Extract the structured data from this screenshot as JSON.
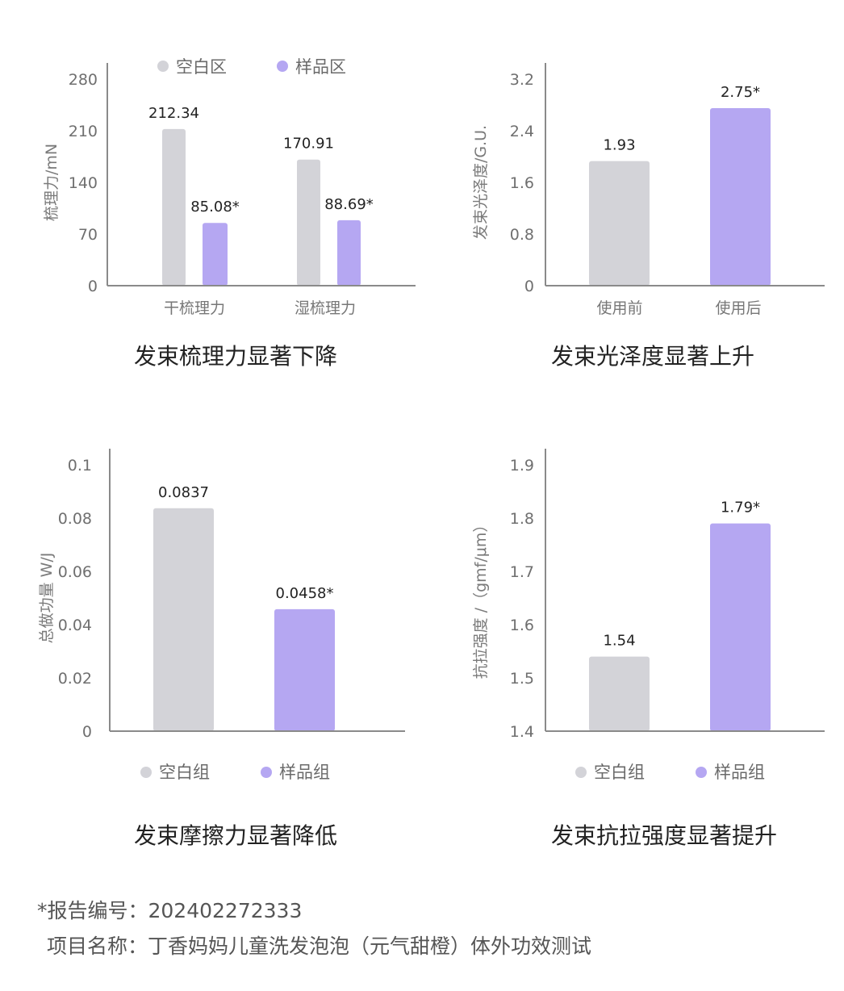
{
  "colors": {
    "blank": "#d3d3d8",
    "sample": "#b5a7f2",
    "axis": "#8a8a8a"
  },
  "chart_data": [
    {
      "type": "bar",
      "title": "发束梳理力显著下降",
      "ylabel": "梳理力/mN",
      "ylim": [
        0,
        280
      ],
      "yticks": [
        "0",
        "70",
        "140",
        "210",
        "280"
      ],
      "categories": [
        "干梳理力",
        "湿梳理力"
      ],
      "legend_position": "top",
      "series": [
        {
          "name": "空白区",
          "values": [
            212.34,
            170.91
          ],
          "labels": [
            "212.34",
            "170.91"
          ]
        },
        {
          "name": "样品区",
          "values": [
            85.08,
            88.69
          ],
          "labels": [
            "85.08*",
            "88.69*"
          ]
        }
      ]
    },
    {
      "type": "bar",
      "title": "发束光泽度显著上升",
      "ylabel": "发束光泽度/G.U.",
      "ylim": [
        0,
        3.2
      ],
      "yticks": [
        "0",
        "0.8",
        "1.6",
        "2.4",
        "3.2"
      ],
      "categories": [
        "使用前",
        "使用后"
      ],
      "values": [
        1.93,
        2.75
      ],
      "labels": [
        "1.93",
        "2.75*"
      ]
    },
    {
      "type": "bar",
      "title": "发束摩擦力显著降低",
      "ylabel": "总做功量 W/J",
      "ylim": [
        0,
        0.1
      ],
      "yticks": [
        "0",
        "0.02",
        "0.04",
        "0.06",
        "0.08",
        "0.1"
      ],
      "categories": [
        "空白组",
        "样品组"
      ],
      "values": [
        0.0837,
        0.0458
      ],
      "labels": [
        "0.0837",
        "0.0458*"
      ],
      "legend_position": "bottom",
      "legend": [
        "空白组",
        "样品组"
      ]
    },
    {
      "type": "bar",
      "title": "发束抗拉强度显著提升",
      "ylabel": "抗拉强度 /（gmf/μm）",
      "ylim": [
        1.4,
        1.9
      ],
      "yticks": [
        "1.4",
        "1.5",
        "1.6",
        "1.7",
        "1.8",
        "1.9"
      ],
      "categories": [
        "空白组",
        "样品组"
      ],
      "values": [
        1.54,
        1.79
      ],
      "labels": [
        "1.54",
        "1.79*"
      ],
      "legend_position": "bottom",
      "legend": [
        "空白组",
        "样品组"
      ]
    }
  ],
  "footer": {
    "report_no": "*报告编号：202402272333",
    "project": "项目名称：丁香妈妈儿童洗发泡泡（元气甜橙）体外功效测试"
  }
}
